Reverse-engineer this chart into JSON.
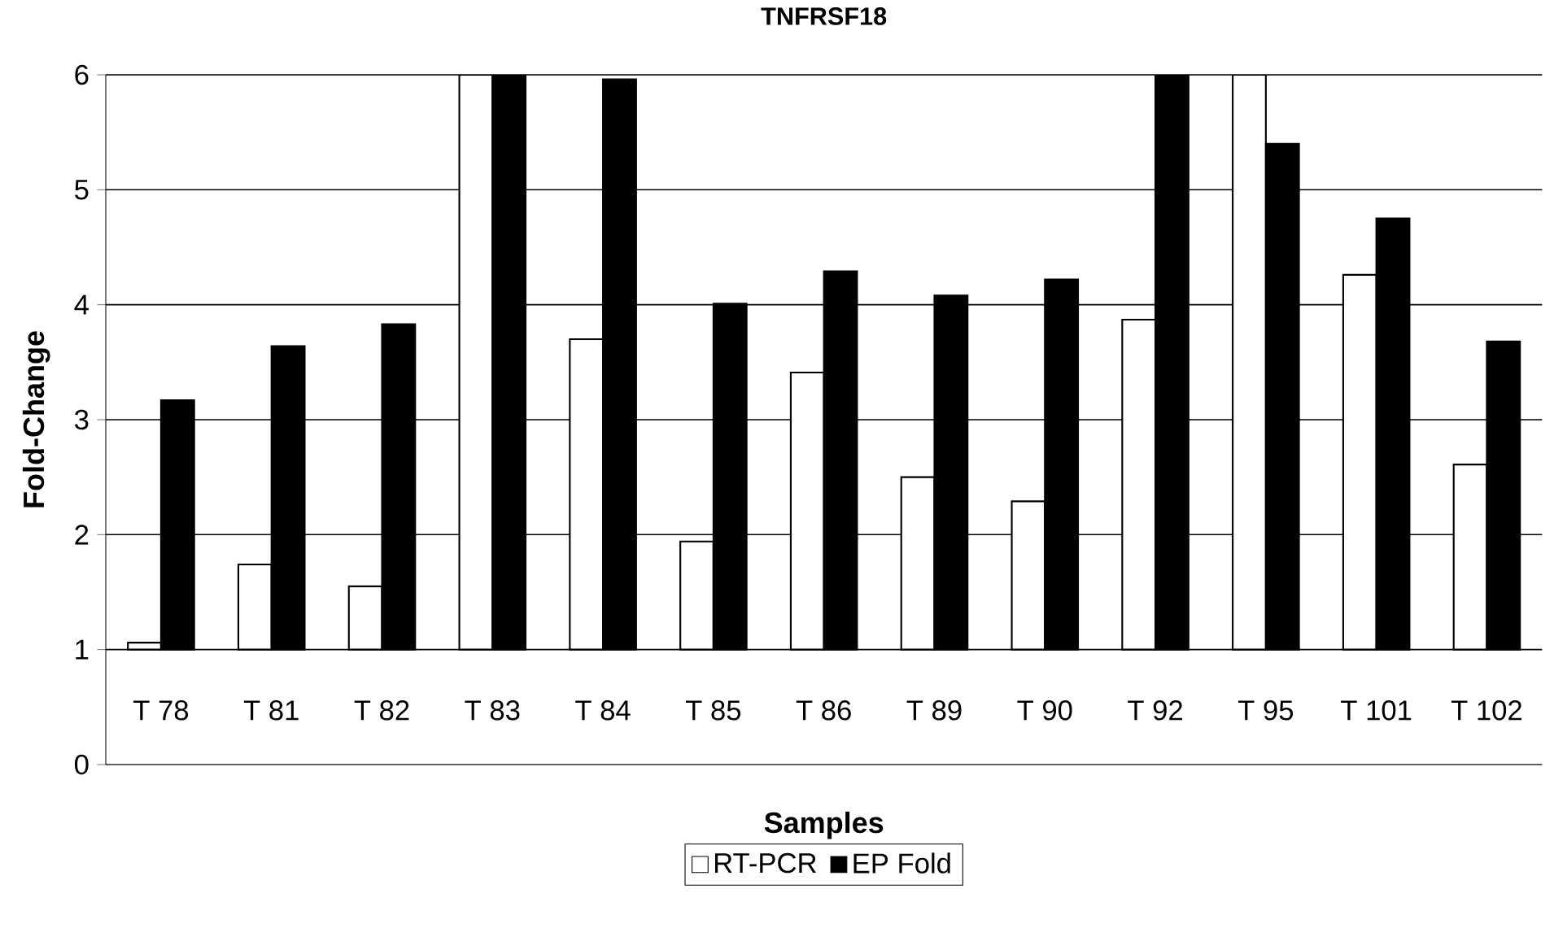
{
  "chart_data": {
    "type": "bar",
    "title": "TNFRSF18",
    "xlabel": "Samples",
    "ylabel": "Fold-Change",
    "categories": [
      "T 78",
      "T 81",
      "T 82",
      "T 83",
      "T 84",
      "T 85",
      "T 86",
      "T 89",
      "T 90",
      "T 92",
      "T 95",
      "T 101",
      "T 102"
    ],
    "series": [
      {
        "name": "RT-PCR",
        "color": "#ffffff",
        "base": [
          1,
          1,
          1,
          1,
          1,
          1,
          1,
          1,
          1,
          1,
          1,
          1,
          1
        ],
        "values": [
          0.06,
          0.74,
          0.55,
          5,
          2.7,
          0.94,
          2.41,
          1.5,
          1.29,
          2.87,
          5,
          3.26,
          1.61
        ]
      },
      {
        "name": "EP Fold",
        "color": "#000000",
        "base": [
          1,
          1,
          1,
          1,
          1,
          1,
          1,
          1,
          1,
          1,
          1,
          1,
          1
        ],
        "values": [
          2.17,
          2.64,
          2.83,
          5,
          4.96,
          3.01,
          3.29,
          3.08,
          3.22,
          5,
          4.4,
          3.75,
          2.68
        ]
      }
    ],
    "ylim": [
      0,
      6
    ],
    "yticks": [
      0,
      1,
      2,
      3,
      4,
      5,
      6
    ],
    "grid": "y",
    "legend": "bottom"
  }
}
